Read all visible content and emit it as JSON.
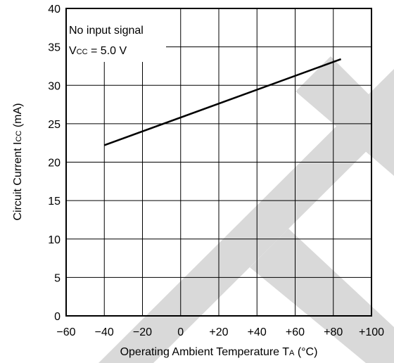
{
  "chart_data": {
    "type": "line",
    "title": "",
    "xlabel": "Operating Ambient Temperature",
    "xlabel_symbol": "T",
    "xlabel_subscript": "A",
    "xlabel_unit": "(°C)",
    "ylabel": "Circuit Current",
    "ylabel_symbol": "I",
    "ylabel_subscript": "CC",
    "ylabel_unit": "(mA)",
    "xlim": [
      -60,
      100
    ],
    "ylim": [
      0,
      40
    ],
    "xticks": [
      -60,
      -40,
      -20,
      0,
      20,
      40,
      60,
      80,
      100
    ],
    "xtick_labels": [
      "−60",
      "−40",
      "−20",
      "0",
      "+20",
      "+40",
      "+60",
      "+80",
      "+100"
    ],
    "yticks": [
      0,
      5,
      10,
      15,
      20,
      25,
      30,
      35,
      40
    ],
    "ytick_labels": [
      "0",
      "5",
      "10",
      "15",
      "20",
      "25",
      "30",
      "35",
      "40"
    ],
    "grid": true,
    "series": [
      {
        "x": [
          -40,
          84
        ],
        "y": [
          22.2,
          33.4
        ]
      }
    ],
    "annotation": {
      "line1": "No input signal",
      "line2_prefix": "V",
      "line2_sub": "CC",
      "line2_suffix": " = 5.0 V"
    },
    "watermark_color": "#d9d9d9",
    "line_color": "#000000"
  }
}
